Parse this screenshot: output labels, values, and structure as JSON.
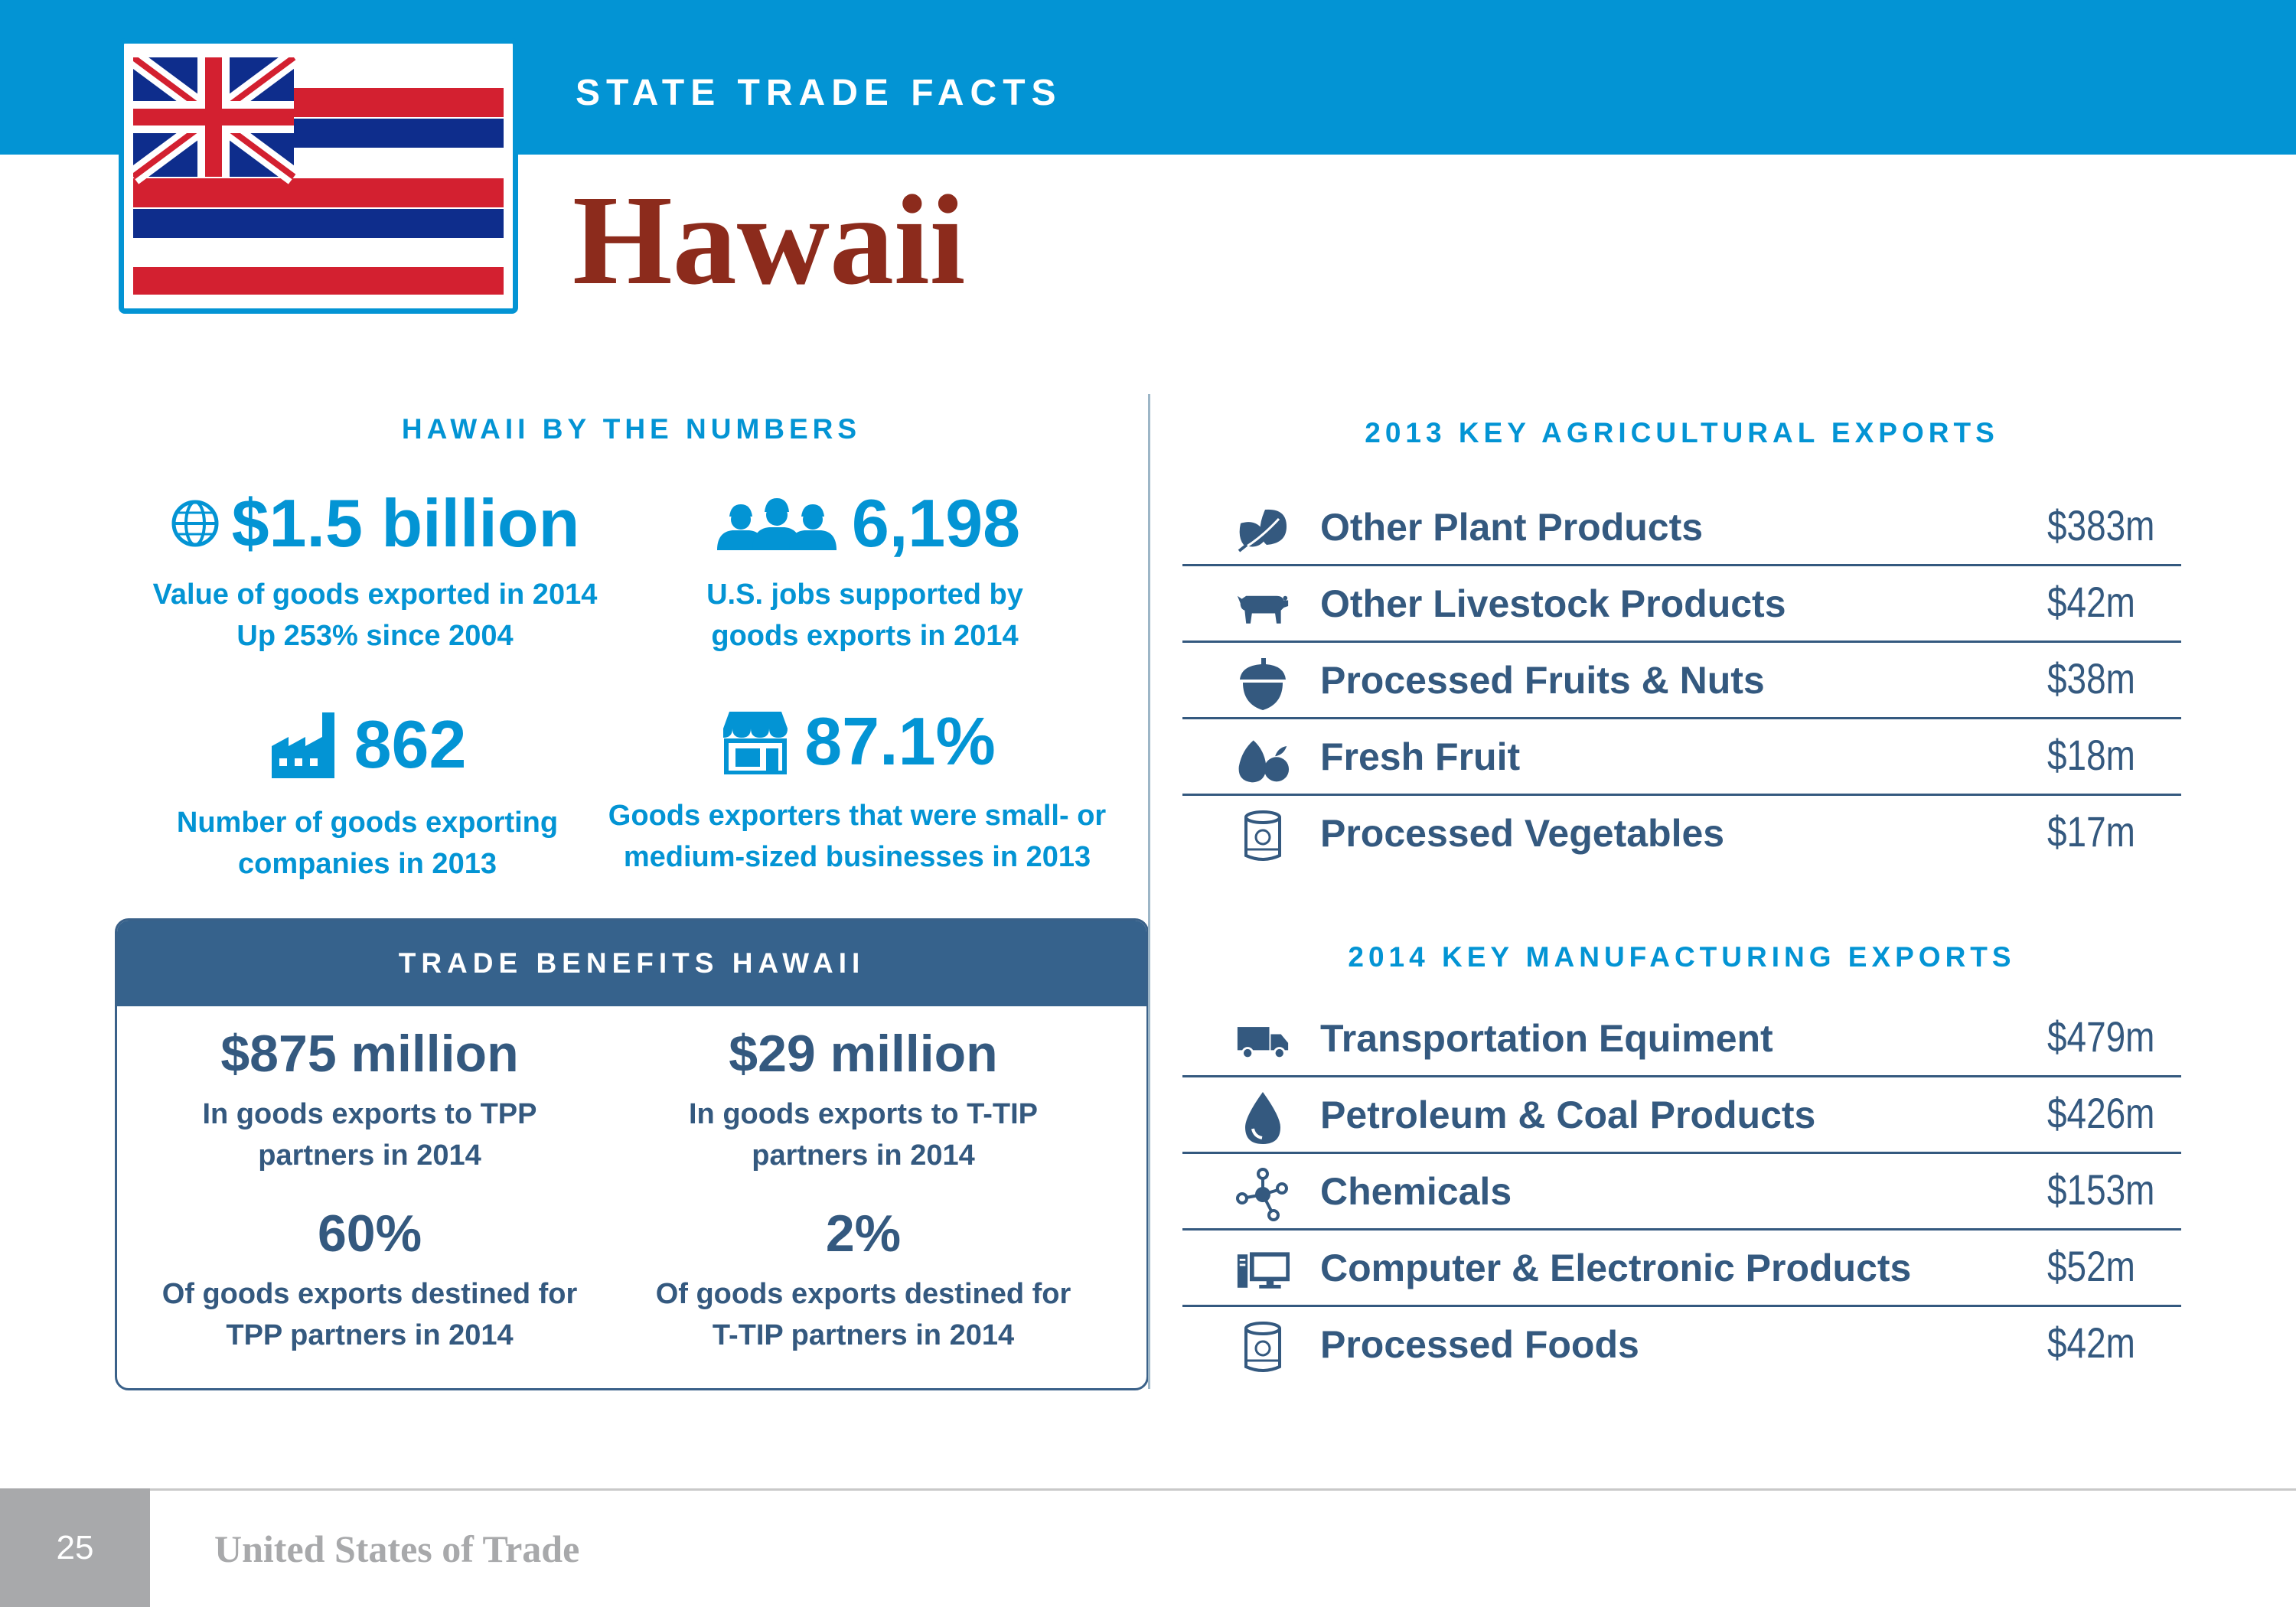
{
  "header": {
    "kicker": "STATE TRADE FACTS",
    "state": "Hawaii",
    "flag_colors": {
      "red": "#d32030",
      "blue": "#0e2d8c",
      "white": "#ffffff"
    }
  },
  "numbers": {
    "heading": "HAWAII BY THE NUMBERS",
    "stats": [
      {
        "icon": "globe-icon",
        "value": "$1.5 billion",
        "label_line1": "Value of goods exported in 2014",
        "label_line2": "Up 253% since 2004"
      },
      {
        "icon": "workers-icon",
        "value": "6,198",
        "label_line1": "U.S. jobs supported by",
        "label_line2": "goods exports in 2014"
      },
      {
        "icon": "factory-icon",
        "value": "862",
        "label_line1": "Number of goods exporting",
        "label_line2": "companies in 2013"
      },
      {
        "icon": "storefront-icon",
        "value": "87.1%",
        "label_line1": "Goods exporters that were small- or",
        "label_line2": "medium-sized businesses in 2013"
      }
    ]
  },
  "benefits": {
    "heading": "TRADE BENEFITS HAWAII",
    "stats": [
      {
        "value": "$875 million",
        "label_line1": "In goods exports to TPP",
        "label_line2": "partners in 2014"
      },
      {
        "value": "$29 million",
        "label_line1": "In goods exports to T-TIP",
        "label_line2": "partners in 2014"
      },
      {
        "value": "60%",
        "label_line1": "Of goods exports destined for",
        "label_line2": "TPP partners in 2014"
      },
      {
        "value": "2%",
        "label_line1": "Of goods exports destined for",
        "label_line2": "T-TIP partners in 2014"
      }
    ]
  },
  "agricultural": {
    "heading": "2013 KEY AGRICULTURAL EXPORTS",
    "items": [
      {
        "icon": "leaf-icon",
        "name": "Other Plant Products",
        "value": "$383m"
      },
      {
        "icon": "cow-icon",
        "name": "Other Livestock Products",
        "value": "$42m"
      },
      {
        "icon": "acorn-icon",
        "name": "Processed Fruits & Nuts",
        "value": "$38m"
      },
      {
        "icon": "fruit-icon",
        "name": "Fresh Fruit",
        "value": "$18m"
      },
      {
        "icon": "can-icon",
        "name": "Processed Vegetables",
        "value": "$17m"
      }
    ]
  },
  "manufacturing": {
    "heading": "2014 KEY MANUFACTURING EXPORTS",
    "items": [
      {
        "icon": "truck-icon",
        "name": "Transportation Equiment",
        "value": "$479m"
      },
      {
        "icon": "drop-icon",
        "name": "Petroleum & Coal Products",
        "value": "$426m"
      },
      {
        "icon": "molecule-icon",
        "name": "Chemicals",
        "value": "$153m"
      },
      {
        "icon": "computer-icon",
        "name": "Computer & Electronic Products",
        "value": "$52m"
      },
      {
        "icon": "can-icon",
        "name": "Processed Foods",
        "value": "$42m"
      }
    ]
  },
  "footer": {
    "page_number": "25",
    "publication": "United States of Trade"
  }
}
